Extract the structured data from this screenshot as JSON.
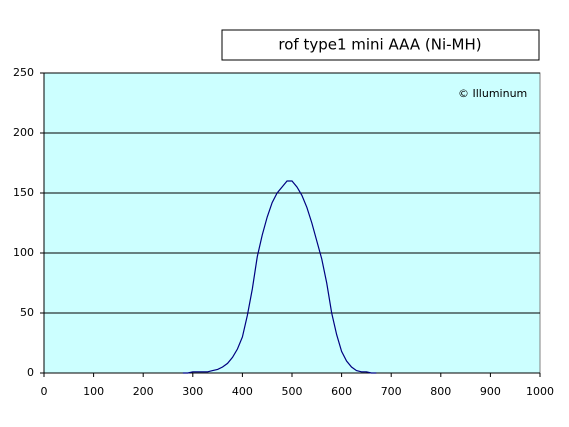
{
  "chart_data": {
    "type": "line",
    "title": "rof type1 mini AAA (Ni-MH)",
    "annotation": "© Illuminum",
    "x": [
      280,
      290,
      300,
      310,
      320,
      330,
      340,
      350,
      360,
      370,
      380,
      390,
      400,
      410,
      420,
      430,
      440,
      450,
      460,
      470,
      480,
      490,
      500,
      510,
      520,
      530,
      540,
      550,
      560,
      570,
      580,
      590,
      600,
      610,
      620,
      630,
      640,
      650,
      660,
      670
    ],
    "series": [
      {
        "color": "#000080",
        "values": [
          0,
          0,
          1,
          1,
          1,
          1,
          2,
          3,
          5,
          8,
          13,
          20,
          30,
          48,
          70,
          97,
          115,
          130,
          142,
          150,
          155,
          160,
          160,
          155,
          148,
          138,
          125,
          110,
          95,
          75,
          50,
          32,
          18,
          10,
          5,
          2,
          1,
          1,
          0,
          0
        ]
      }
    ],
    "xlim": [
      0,
      1000
    ],
    "xticks": [
      0,
      100,
      200,
      300,
      400,
      500,
      600,
      700,
      800,
      900,
      1000
    ],
    "ylim": [
      0,
      250
    ],
    "yticks": [
      0,
      50,
      100,
      150,
      200,
      250
    ],
    "grid": true,
    "background": "#ccffff"
  }
}
